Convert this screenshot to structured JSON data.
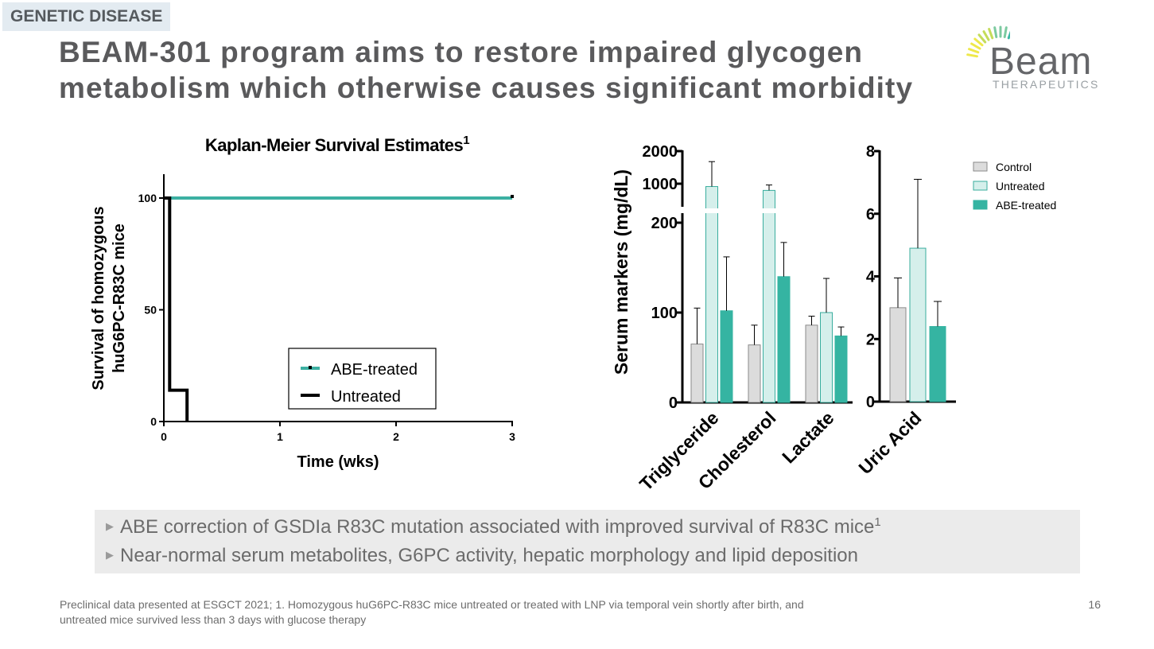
{
  "tag": "GENETIC DISEASE",
  "title_lines": [
    "BEAM-301 program aims to restore impaired glycogen",
    "metabolism which otherwise causes significant morbidity"
  ],
  "logo": {
    "word": "Beam",
    "sub": "THERAPEUTICS",
    "ray_colors": [
      "#3bb7a5",
      "#7ccaa0",
      "#c4dc5a",
      "#eee84a"
    ]
  },
  "chart_data": [
    {
      "type": "line",
      "title": "Kaplan-Meier Survival Estimates",
      "title_sup": "1",
      "xlabel": "Time (wks)",
      "ylabel_lines": [
        "Survival of homozygous",
        "huG6PC-R83C mice"
      ],
      "xlim": [
        0,
        3
      ],
      "ylim": [
        0,
        100
      ],
      "x_ticks": [
        0,
        1,
        2,
        3
      ],
      "y_ticks": [
        0,
        50,
        100
      ],
      "legend_placement": "inside-bottom-right",
      "series": [
        {
          "name": "ABE-treated",
          "color": "#3cb0a2",
          "step": true,
          "x": [
            0,
            3
          ],
          "y": [
            100,
            100
          ]
        },
        {
          "name": "Untreated",
          "color": "#000000",
          "step": true,
          "x": [
            0,
            0.05,
            0.2
          ],
          "y": [
            100,
            14,
            0
          ]
        }
      ]
    },
    {
      "type": "bar",
      "ylabel": "Serum markers (mg/dL)",
      "y_axis_broken": true,
      "y_ticks_lower": [
        0,
        100,
        200
      ],
      "y_ticks_upper": [
        1000,
        2000
      ],
      "categories": [
        "Triglyceride",
        "Cholesterol",
        "Lactate"
      ],
      "series": [
        {
          "name": "Control",
          "values": [
            65,
            64,
            86
          ],
          "errors": [
            40,
            22,
            10
          ]
        },
        {
          "name": "Untreated",
          "values": [
            850,
            680,
            100
          ],
          "errors": [
            750,
            250,
            38
          ]
        },
        {
          "name": "ABE-treated",
          "values": [
            102,
            140,
            74
          ],
          "errors": [
            60,
            38,
            10
          ]
        }
      ]
    },
    {
      "type": "bar",
      "categories": [
        "Uric Acid"
      ],
      "ylim": [
        0,
        8
      ],
      "y_ticks": [
        0,
        2,
        4,
        6,
        8
      ],
      "legend_placement": "top-right",
      "series": [
        {
          "name": "Control",
          "color": "#dcdcdc",
          "values": [
            3.0
          ],
          "errors": [
            0.95
          ]
        },
        {
          "name": "Untreated",
          "color": "#d5efeb",
          "values": [
            4.9
          ],
          "errors": [
            2.2
          ]
        },
        {
          "name": "ABE-treated",
          "color": "#35b4a2",
          "values": [
            2.4
          ],
          "errors": [
            0.8
          ]
        }
      ]
    }
  ],
  "bullets": [
    {
      "text": "ABE correction of GSDIa R83C mutation associated with improved survival of R83C mice",
      "sup": "1"
    },
    {
      "text": "Near-normal serum metabolites, G6PC activity, hepatic morphology and lipid deposition",
      "sup": ""
    }
  ],
  "footnote": "Preclinical data presented at ESGCT 2021;  1. Homozygous huG6PC-R83C mice untreated or treated with LNP via temporal vein shortly after birth, and untreated mice survived less than 3 days with glucose therapy",
  "page_number": "16"
}
